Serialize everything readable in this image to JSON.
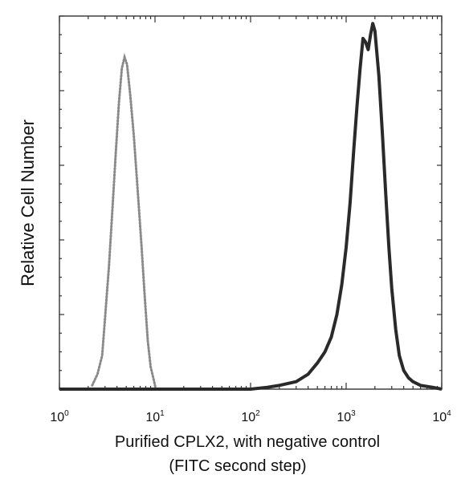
{
  "chart_data": {
    "type": "line",
    "title": "",
    "xlabel_line1": "Purified CPLX2, with negative control",
    "xlabel_line2": "(FITC second step)",
    "ylabel": "Relative Cell Number",
    "x_scale": "log",
    "xlim": [
      1,
      10000
    ],
    "ylim": [
      0,
      1
    ],
    "grid": false,
    "legend": "none",
    "x_ticks": [
      {
        "value": 1,
        "base": "10",
        "exp": "0"
      },
      {
        "value": 10,
        "base": "10",
        "exp": "1"
      },
      {
        "value": 100,
        "base": "10",
        "exp": "2"
      },
      {
        "value": 1000,
        "base": "10",
        "exp": "3"
      },
      {
        "value": 10000,
        "base": "10",
        "exp": "4"
      }
    ],
    "series": [
      {
        "style": "dotted",
        "color": "#8a8a8a",
        "x": [
          2.2,
          2.5,
          2.8,
          3.0,
          3.3,
          3.6,
          3.9,
          4.2,
          4.5,
          4.8,
          5.1,
          5.5,
          6.0,
          6.6,
          7.2,
          7.8,
          8.4,
          9.0,
          9.6,
          10.2
        ],
        "y": [
          0.01,
          0.04,
          0.09,
          0.19,
          0.33,
          0.49,
          0.64,
          0.77,
          0.86,
          0.89,
          0.87,
          0.79,
          0.68,
          0.53,
          0.39,
          0.25,
          0.13,
          0.06,
          0.03,
          0.0
        ]
      },
      {
        "style": "solid",
        "color": "#2a2a2a",
        "x": [
          1,
          10,
          100,
          150,
          200,
          300,
          400,
          500,
          600,
          700,
          800,
          900,
          1000,
          1100,
          1200,
          1300,
          1400,
          1500,
          1600,
          1700,
          1800,
          1900,
          2000,
          2200,
          2400,
          2600,
          2800,
          3000,
          3300,
          3600,
          4000,
          4500,
          5000,
          6000,
          8000,
          10000
        ],
        "y": [
          0.0,
          0.0,
          0.0,
          0.005,
          0.01,
          0.02,
          0.04,
          0.07,
          0.1,
          0.14,
          0.2,
          0.28,
          0.38,
          0.5,
          0.64,
          0.76,
          0.86,
          0.94,
          0.93,
          0.91,
          0.95,
          0.98,
          0.96,
          0.84,
          0.68,
          0.52,
          0.38,
          0.27,
          0.16,
          0.09,
          0.05,
          0.03,
          0.02,
          0.01,
          0.005,
          0.0
        ]
      }
    ]
  }
}
